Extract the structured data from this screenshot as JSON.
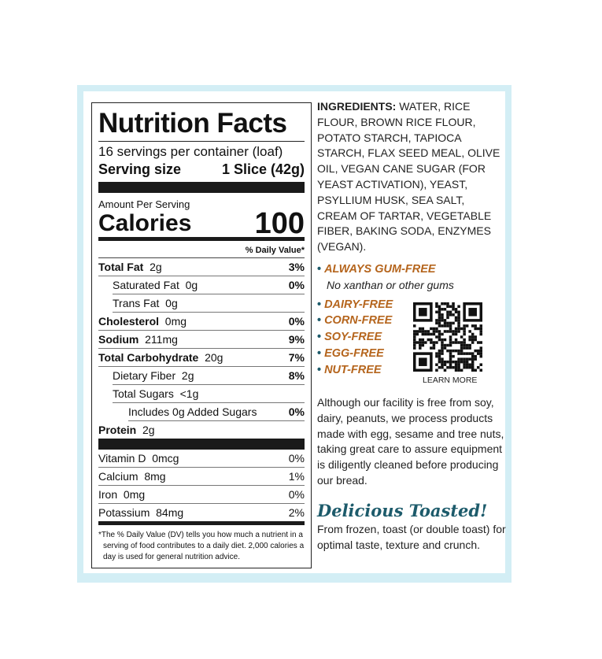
{
  "nutrition": {
    "title": "Nutrition Facts",
    "servings": "16 servings per container (loaf)",
    "serving_size_label": "Serving size",
    "serving_size_value": "1 Slice (42g)",
    "amount_per_serving": "Amount Per Serving",
    "calories_label": "Calories",
    "calories_value": "100",
    "daily_value_header": "% Daily Value*",
    "rows": [
      {
        "label": "Total Fat",
        "amount": "2g",
        "dv": "3%"
      },
      {
        "label": "Saturated Fat",
        "amount": "0g",
        "dv": "0%"
      },
      {
        "label": "Trans Fat",
        "amount": "0g",
        "dv": ""
      },
      {
        "label": "Cholesterol",
        "amount": "0mg",
        "dv": "0%"
      },
      {
        "label": "Sodium",
        "amount": "211mg",
        "dv": "9%"
      },
      {
        "label": "Total Carbohydrate",
        "amount": "20g",
        "dv": "7%"
      },
      {
        "label": "Dietary Fiber",
        "amount": "2g",
        "dv": "8%"
      },
      {
        "label": "Total Sugars",
        "amount": "<1g",
        "dv": ""
      },
      {
        "label": "Includes 0g Added Sugars",
        "amount": "",
        "dv": "0%"
      },
      {
        "label": "Protein",
        "amount": "2g",
        "dv": ""
      }
    ],
    "vitamins": [
      {
        "label": "Vitamin D",
        "amount": "0mcg",
        "dv": "0%"
      },
      {
        "label": "Calcium",
        "amount": "8mg",
        "dv": "1%"
      },
      {
        "label": "Iron",
        "amount": "0mg",
        "dv": "0%"
      },
      {
        "label": "Potassium",
        "amount": "84mg",
        "dv": "2%"
      }
    ],
    "footnote": "*The % Daily Value (DV) tells you how much a nutrient in a serving of food contributes to a daily diet. 2,000 calories a day is used for general nutrition advice."
  },
  "ingredients": {
    "label": "INGREDIENTS:",
    "text": " WATER, RICE FLOUR, BROWN RICE FLOUR, POTATO STARCH, TAPIOCA STARCH, FLAX SEED MEAL, OLIVE OIL, VEGAN CANE SUGAR (FOR YEAST ACTIVATION), YEAST, PSYLLIUM HUSK, SEA SALT, CREAM OF TARTAR, VEGETABLE FIBER, BAKING SODA, ENZYMES (VEGAN)."
  },
  "claims": {
    "main": "ALWAYS GUM-FREE",
    "main_sub": "No xanthan or other gums",
    "items": [
      "DAIRY-FREE",
      "CORN-FREE",
      "SOY-FREE",
      "EGG-FREE",
      "NUT-FREE"
    ],
    "qr_label": "LEARN MORE"
  },
  "allergen_note": "Although our facility is free from soy, dairy, peanuts, we process products made with egg, sesame and tree nuts, taking great care to assure equipment is diligently cleaned before producing our bread.",
  "toast": {
    "heading": "Delicious Toasted!",
    "text": "From frozen, toast (or double toast) for optimal taste, texture and crunch."
  },
  "colors": {
    "frame": "#d3eef5",
    "claim": "#b5651d",
    "accent": "#1d5b6b"
  }
}
